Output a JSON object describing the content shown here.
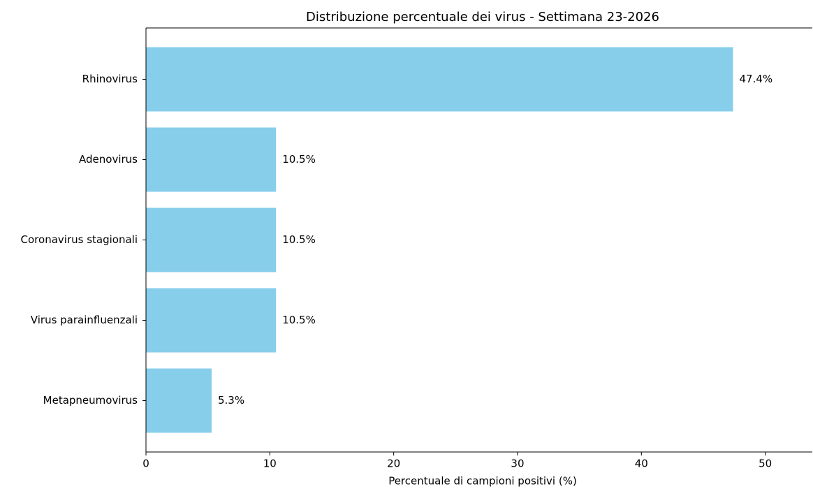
{
  "chart_data": {
    "type": "barh",
    "title": "Distribuzione percentuale dei virus - Settimana 23-2026",
    "x_label": "Percentuale di campioni positivi (%)",
    "categories": [
      "Rhinovirus",
      "Adenovirus",
      "Coronavirus stagionali",
      "Virus parainfluenzali",
      "Metapneumovirus"
    ],
    "values": [
      47.4,
      10.5,
      10.5,
      10.5,
      5.3
    ],
    "value_labels": [
      "47.4%",
      "10.5%",
      "10.5%",
      "10.5%",
      "5.3%"
    ],
    "color": "#87ceeb",
    "xlim": [
      0,
      53.8
    ],
    "xticks": [
      0,
      10,
      20,
      30,
      40,
      50
    ],
    "grid": false
  }
}
